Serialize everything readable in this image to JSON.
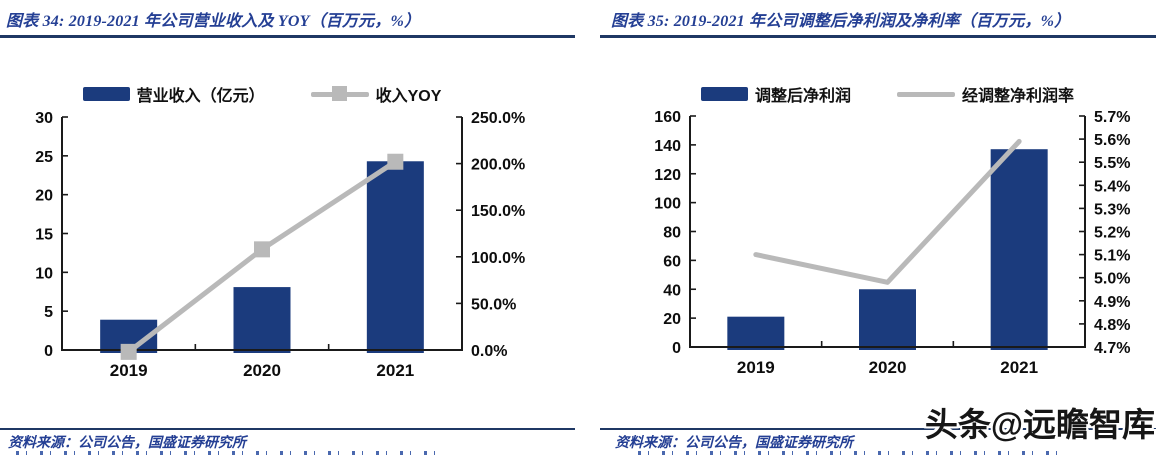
{
  "watermark": {
    "text": "头条@远瞻智库"
  },
  "colors": {
    "bar_navy": "#1b3b7d",
    "line_gray": "#b9b9b9",
    "title_navy": "#243f94",
    "rule_navy": "#1f3864",
    "axis_black": "#1a1a1a"
  },
  "chart_data": [
    {
      "type": "bar",
      "combo": "bar+line",
      "title": "图表 34:  2019-2021 年公司营业收入及 YOY（百万元，%）",
      "source": "资料来源：公司公告，国盛证券研究所",
      "categories": [
        "2019",
        "2020",
        "2021"
      ],
      "series": [
        {
          "name": "营业收入（亿元）",
          "type": "bar",
          "axis": "left",
          "values": [
            3.9,
            8.1,
            24.3
          ],
          "marker": null
        },
        {
          "name": "收入YOY",
          "type": "line",
          "axis": "right",
          "values": [
            -2,
            108,
            202
          ],
          "marker": "square"
        }
      ],
      "left_axis": {
        "min": 0,
        "max": 30,
        "step": 5,
        "labels": [
          "0",
          "5",
          "10",
          "15",
          "20",
          "25",
          "30"
        ]
      },
      "right_axis": {
        "min": 0,
        "max": 250,
        "step": 50,
        "labels": [
          "0.0%",
          "50.0%",
          "100.0%",
          "150.0%",
          "200.0%",
          "250.0%"
        ]
      },
      "legend_position": "top",
      "grid": false
    },
    {
      "type": "bar",
      "combo": "bar+line",
      "title": "图表 35:  2019-2021 年公司调整后净利润及净利率（百万元，%）",
      "source": "资料来源：公司公告，国盛证券研究所",
      "categories": [
        "2019",
        "2020",
        "2021"
      ],
      "series": [
        {
          "name": "调整后净利润",
          "type": "bar",
          "axis": "left",
          "values": [
            21,
            40,
            137
          ],
          "marker": null
        },
        {
          "name": "经调整净利润率",
          "type": "line",
          "axis": "right",
          "values": [
            5.1,
            4.98,
            5.59
          ],
          "marker": null
        }
      ],
      "left_axis": {
        "min": 0,
        "max": 160,
        "step": 20,
        "labels": [
          "0",
          "20",
          "40",
          "60",
          "80",
          "100",
          "120",
          "140",
          "160"
        ]
      },
      "right_axis": {
        "min": 4.7,
        "max": 5.7,
        "step": 0.1,
        "labels": [
          "4.7%",
          "4.8%",
          "4.9%",
          "5.0%",
          "5.1%",
          "5.2%",
          "5.3%",
          "5.4%",
          "5.5%",
          "5.6%",
          "5.7%"
        ]
      },
      "legend_position": "top",
      "grid": false
    }
  ]
}
